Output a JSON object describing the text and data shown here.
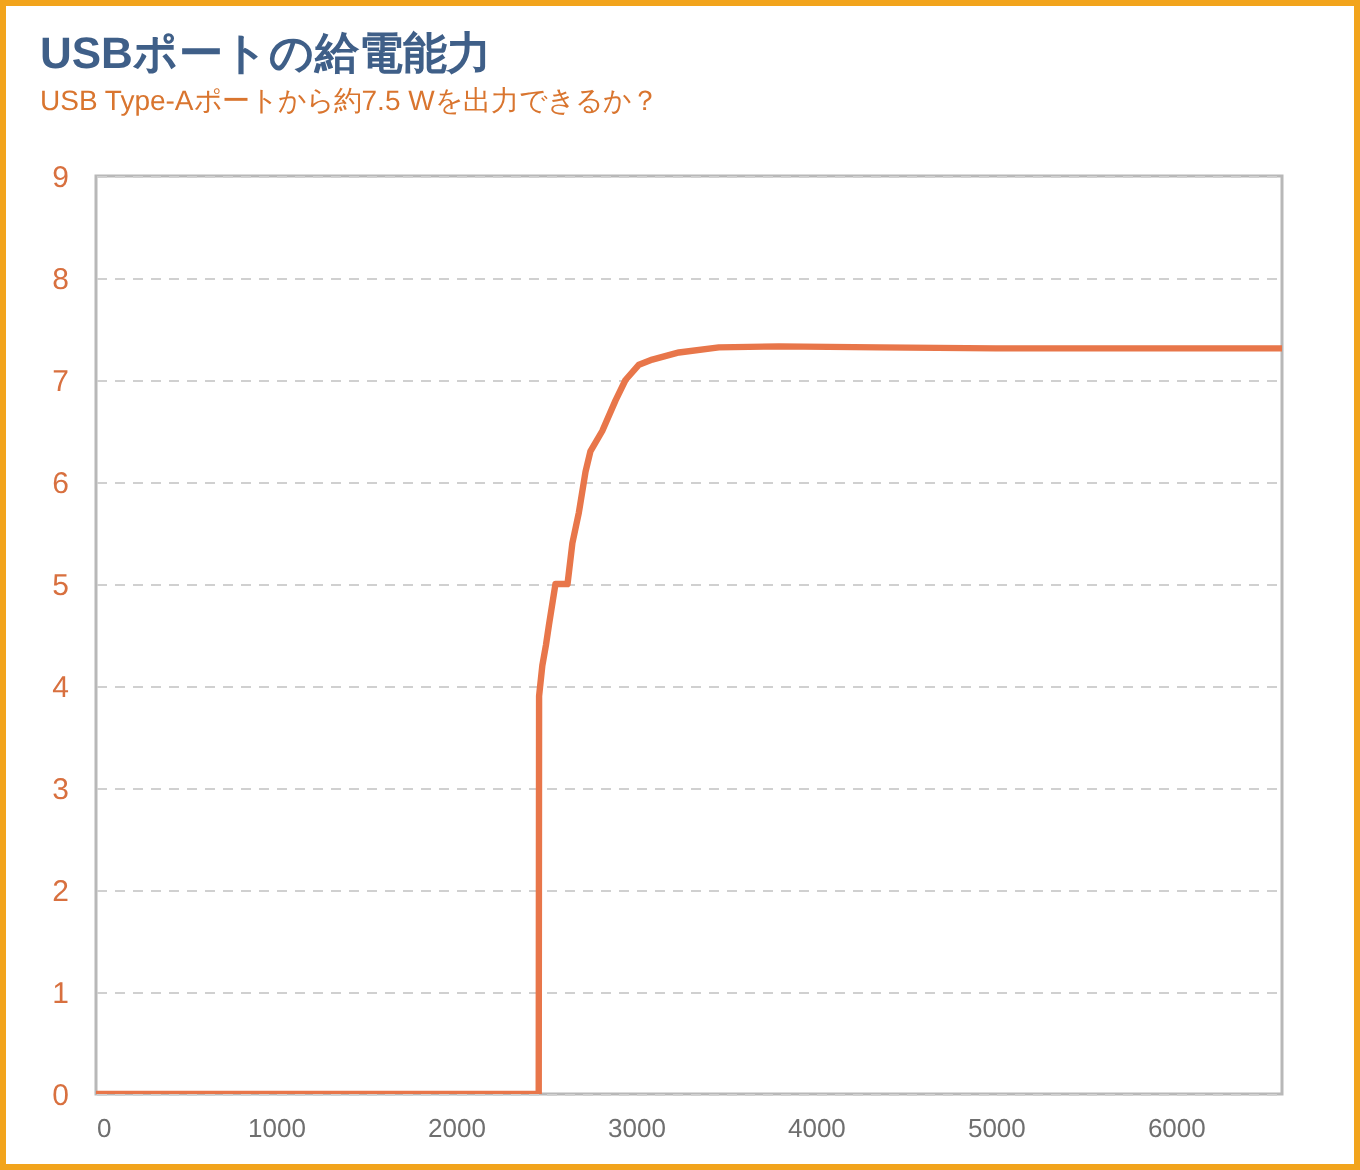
{
  "chart_data": {
    "type": "line",
    "title": "USBポートの給電能力",
    "subtitle": "USB Type-Aポートから約7.5 Wを出力できるか？",
    "x": [
      0,
      2460,
      2462,
      2480,
      2500,
      2517,
      2553,
      2620,
      2647,
      2683,
      2720,
      2747,
      2813,
      2887,
      2942,
      3017,
      3091,
      3239,
      3461,
      3794,
      4350,
      5000,
      5500,
      6000,
      6590
    ],
    "series": [
      {
        "color": "#e8764a",
        "values": [
          0,
          0,
          3.9,
          4.2,
          4.4,
          4.6,
          5.0,
          5.0,
          5.4,
          5.7,
          6.1,
          6.3,
          6.5,
          6.8,
          7.0,
          7.15,
          7.2,
          7.27,
          7.32,
          7.33,
          7.32,
          7.31,
          7.31,
          7.31,
          7.31
        ]
      }
    ],
    "xlim": [
      0,
      6590
    ],
    "ylim": [
      0,
      9
    ],
    "xticks": [
      0,
      1000,
      2000,
      3000,
      4000,
      5000,
      6000
    ],
    "yticks": [
      0,
      1,
      2,
      3,
      4,
      5,
      6,
      7,
      8,
      9
    ],
    "grid": "y"
  }
}
